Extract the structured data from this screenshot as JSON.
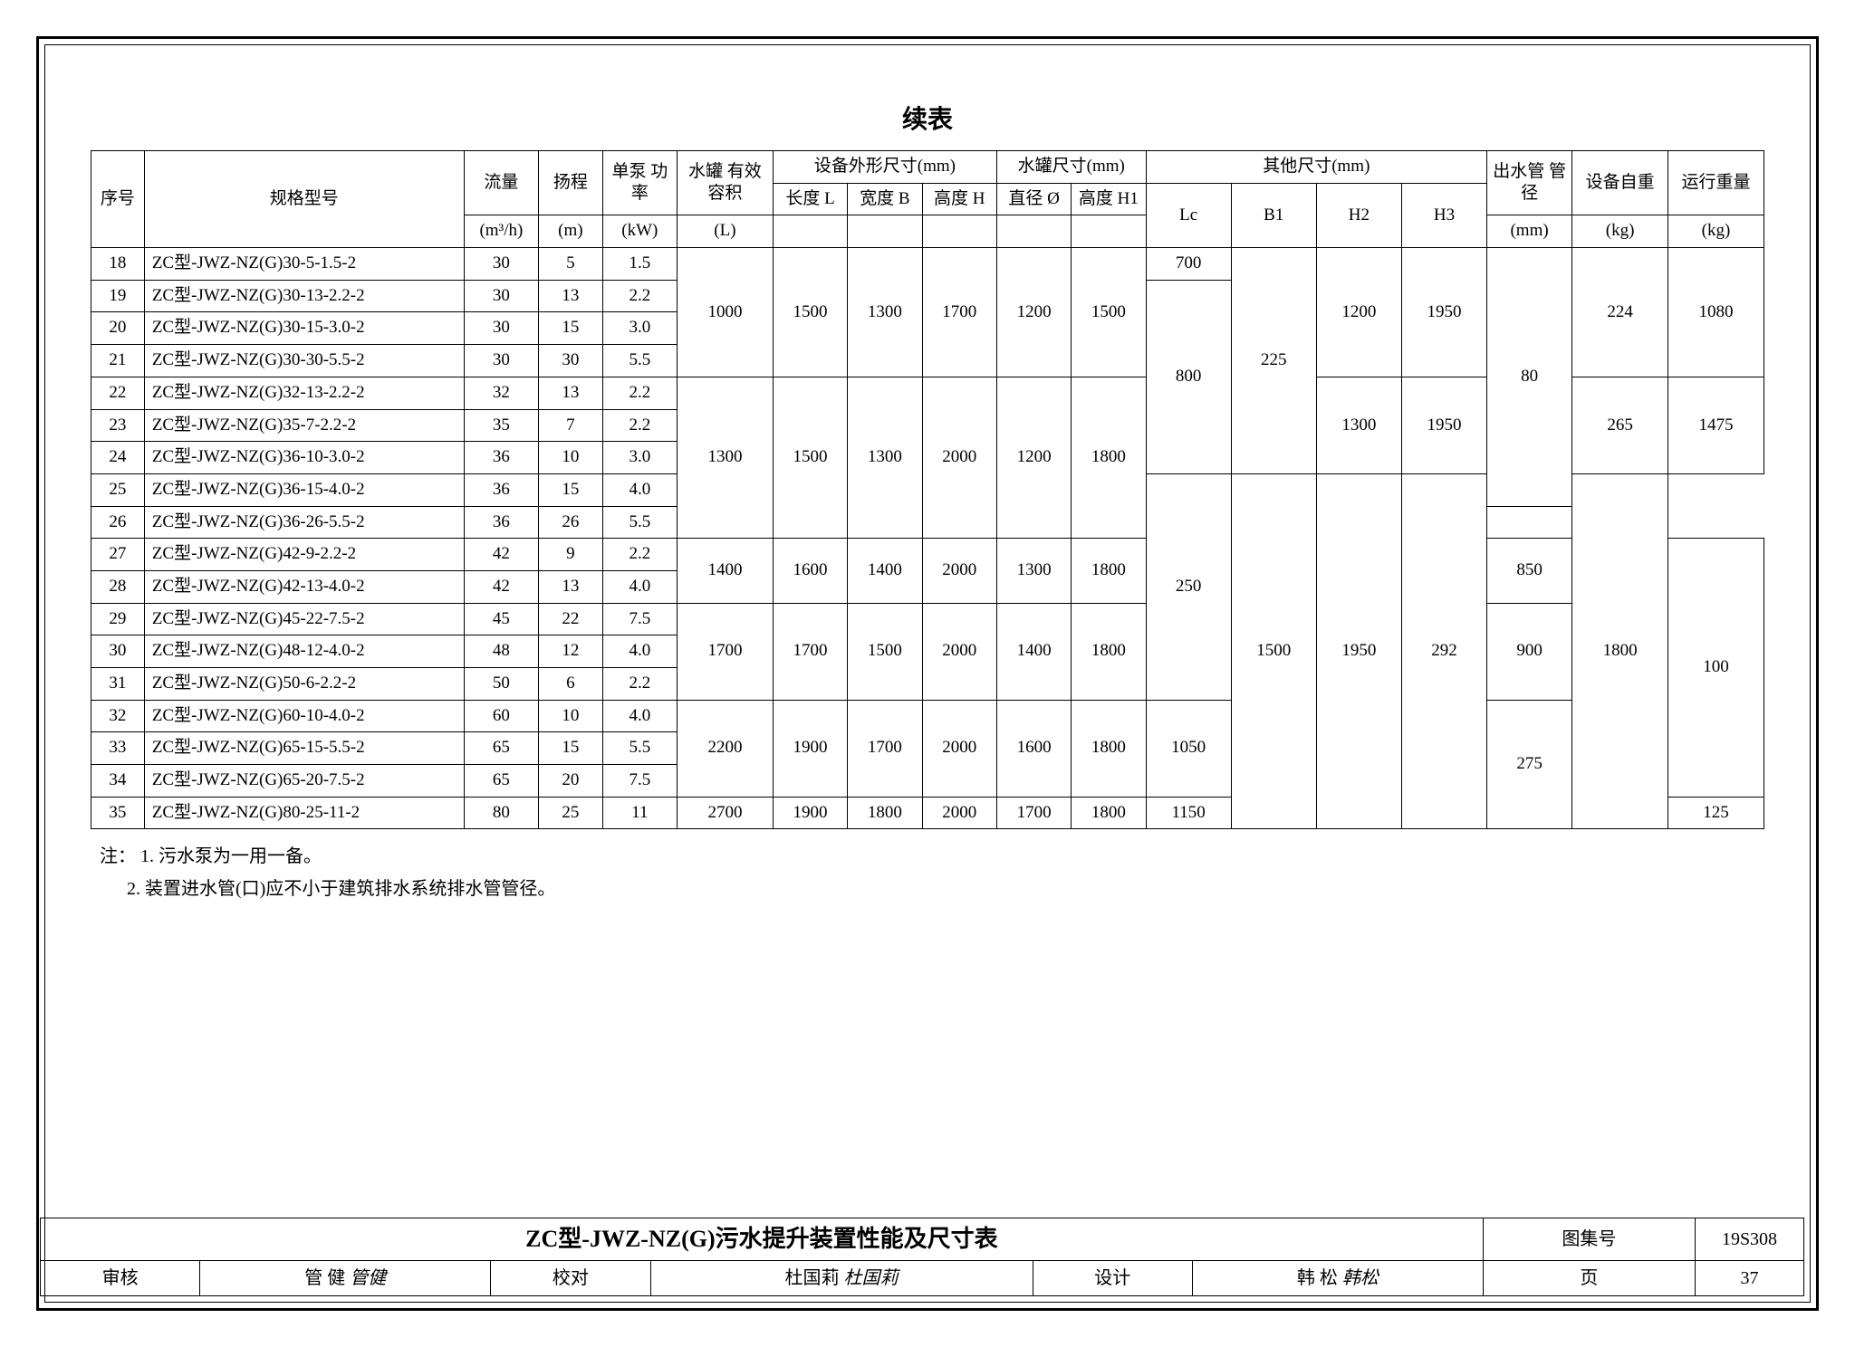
{
  "title": "续表",
  "headers": {
    "seq": "序号",
    "model": "规格型号",
    "flow": "流量",
    "flow_unit": "(m³/h)",
    "head": "扬程",
    "head_unit": "(m)",
    "power": "单泵\n功率",
    "power_unit": "(kW)",
    "tank": "水罐\n有效容积",
    "tank_unit": "(L)",
    "equip_dim": "设备外形尺寸(mm)",
    "tank_dim": "水罐尺寸(mm)",
    "other_dim": "其他尺寸(mm)",
    "L": "长度\nL",
    "B": "宽度\nB",
    "H": "高度\nH",
    "dia": "直径\nØ",
    "H1": "高度\nH1",
    "Lc": "Lc",
    "B1": "B1",
    "H2": "H2",
    "H3": "H3",
    "outlet": "出水管\n管径",
    "outlet_unit": "(mm)",
    "weight": "设备自重",
    "weight_unit": "(kg)",
    "run_weight": "运行重量",
    "run_weight_unit": "(kg)"
  },
  "rows": [
    {
      "seq": 18,
      "model": "ZC型-JWZ-NZ(G)30-5-1.5-2",
      "flow": 30,
      "head": 5,
      "power": "1.5"
    },
    {
      "seq": 19,
      "model": "ZC型-JWZ-NZ(G)30-13-2.2-2",
      "flow": 30,
      "head": 13,
      "power": "2.2"
    },
    {
      "seq": 20,
      "model": "ZC型-JWZ-NZ(G)30-15-3.0-2",
      "flow": 30,
      "head": 15,
      "power": "3.0"
    },
    {
      "seq": 21,
      "model": "ZC型-JWZ-NZ(G)30-30-5.5-2",
      "flow": 30,
      "head": 30,
      "power": "5.5"
    },
    {
      "seq": 22,
      "model": "ZC型-JWZ-NZ(G)32-13-2.2-2",
      "flow": 32,
      "head": 13,
      "power": "2.2"
    },
    {
      "seq": 23,
      "model": "ZC型-JWZ-NZ(G)35-7-2.2-2",
      "flow": 35,
      "head": 7,
      "power": "2.2"
    },
    {
      "seq": 24,
      "model": "ZC型-JWZ-NZ(G)36-10-3.0-2",
      "flow": 36,
      "head": 10,
      "power": "3.0"
    },
    {
      "seq": 25,
      "model": "ZC型-JWZ-NZ(G)36-15-4.0-2",
      "flow": 36,
      "head": 15,
      "power": "4.0"
    },
    {
      "seq": 26,
      "model": "ZC型-JWZ-NZ(G)36-26-5.5-2",
      "flow": 36,
      "head": 26,
      "power": "5.5"
    },
    {
      "seq": 27,
      "model": "ZC型-JWZ-NZ(G)42-9-2.2-2",
      "flow": 42,
      "head": 9,
      "power": "2.2"
    },
    {
      "seq": 28,
      "model": "ZC型-JWZ-NZ(G)42-13-4.0-2",
      "flow": 42,
      "head": 13,
      "power": "4.0"
    },
    {
      "seq": 29,
      "model": "ZC型-JWZ-NZ(G)45-22-7.5-2",
      "flow": 45,
      "head": 22,
      "power": "7.5"
    },
    {
      "seq": 30,
      "model": "ZC型-JWZ-NZ(G)48-12-4.0-2",
      "flow": 48,
      "head": 12,
      "power": "4.0"
    },
    {
      "seq": 31,
      "model": "ZC型-JWZ-NZ(G)50-6-2.2-2",
      "flow": 50,
      "head": 6,
      "power": "2.2"
    },
    {
      "seq": 32,
      "model": "ZC型-JWZ-NZ(G)60-10-4.0-2",
      "flow": 60,
      "head": 10,
      "power": "4.0"
    },
    {
      "seq": 33,
      "model": "ZC型-JWZ-NZ(G)65-15-5.5-2",
      "flow": 65,
      "head": 15,
      "power": "5.5"
    },
    {
      "seq": 34,
      "model": "ZC型-JWZ-NZ(G)65-20-7.5-2",
      "flow": 65,
      "head": 20,
      "power": "7.5"
    },
    {
      "seq": 35,
      "model": "ZC型-JWZ-NZ(G)80-25-11-2",
      "flow": 80,
      "head": 25,
      "power": "11"
    }
  ],
  "merged": {
    "tank1": "1000",
    "L1": "1500",
    "B1v": "1300",
    "Hv1": "1700",
    "dia1": "1200",
    "H1v1": "1500",
    "tank2": "1300",
    "L2": "1500",
    "B2v": "1300",
    "Hv2": "2000",
    "dia2": "1200",
    "H1v2": "1800",
    "tank3": "1400",
    "L3": "1600",
    "B3v": "1400",
    "Hv3": "2000",
    "dia3": "1300",
    "H1v3": "1800",
    "tank4": "1700",
    "L4": "1700",
    "B4v": "1500",
    "Hv4": "2000",
    "dia4": "1400",
    "H1v4": "1800",
    "tank5": "2200",
    "L5": "1900",
    "B5v": "1700",
    "Hv5": "2000",
    "dia5": "1600",
    "H1v5": "1800",
    "tank6": "2700",
    "L6": "1900",
    "B6v": "1800",
    "Hv6": "2000",
    "dia6": "1700",
    "H1v6": "1800",
    "Lc18": "700",
    "Lc19_24": "800",
    "Lc27": "850",
    "Lc29": "900",
    "Lc32": "1050",
    "Lc35": "1150",
    "B1_18_24": "225",
    "B1_25_31": "250",
    "B1_32_35": "275",
    "H2a": "1200",
    "H2b": "1300",
    "H2c": "1500",
    "H3a": "1950",
    "H3b": "1950",
    "H3c": "1950",
    "outlet_a": "80",
    "outlet_b": "100",
    "outlet_c": "125",
    "wt_a": "224",
    "wt_b": "265",
    "wt_c": "292",
    "rwt_a": "1080",
    "rwt_b": "1475",
    "rwt_c": "1800"
  },
  "notes": {
    "prefix": "注：",
    "n1": "1. 污水泵为一用一备。",
    "n2": "2. 装置进水管(口)应不小于建筑排水系统排水管管径。"
  },
  "titleblock": {
    "main_title": "ZC型-JWZ-NZ(G)污水提升装置性能及尺寸表",
    "atlas_label": "图集号",
    "atlas_no": "19S308",
    "review_label": "审核",
    "review_name": "管 健",
    "review_sig": "管健",
    "check_label": "校对",
    "check_name": "杜国莉",
    "check_sig": "杜国莉",
    "design_label": "设计",
    "design_name": "韩 松",
    "design_sig": "韩松",
    "page_label": "页",
    "page_no": "37"
  }
}
